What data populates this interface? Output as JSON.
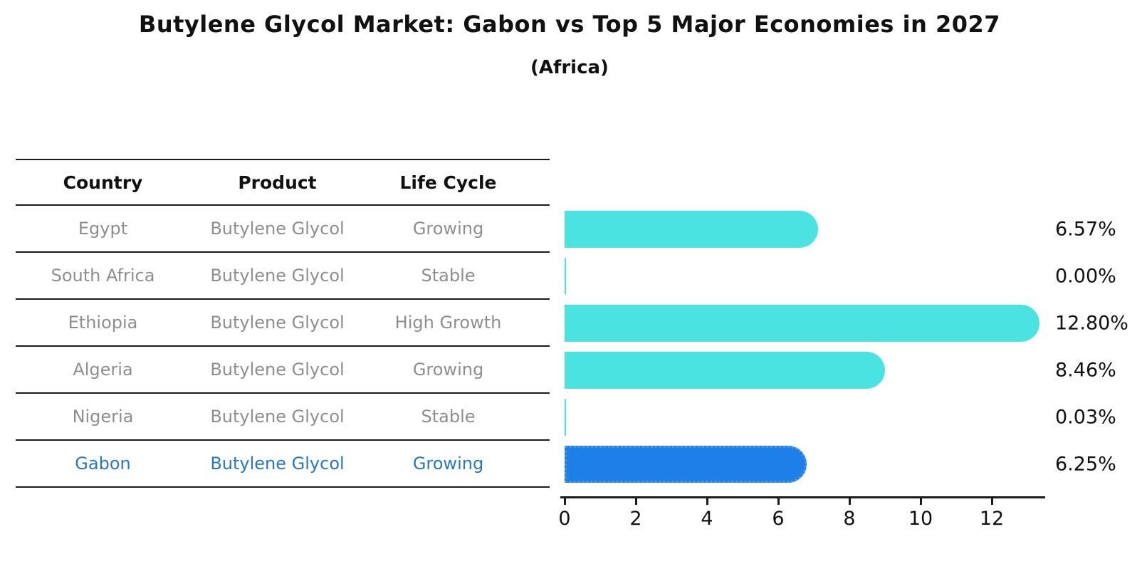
{
  "figure": {
    "title": "Butylene Glycol Market: Gabon vs Top 5 Major Economies in 2027",
    "subtitle": "(Africa)"
  },
  "table": {
    "headers": {
      "country": "Country",
      "product": "Product",
      "life_cycle": "Life Cycle"
    },
    "rows": [
      {
        "country": "Egypt",
        "product": "Butylene Glycol",
        "life_cycle": "Growing"
      },
      {
        "country": "South Africa",
        "product": "Butylene Glycol",
        "life_cycle": "Stable"
      },
      {
        "country": "Ethiopia",
        "product": "Butylene Glycol",
        "life_cycle": "High Growth"
      },
      {
        "country": "Algeria",
        "product": "Butylene Glycol",
        "life_cycle": "Growing"
      },
      {
        "country": "Nigeria",
        "product": "Butylene Glycol",
        "life_cycle": "Stable"
      },
      {
        "country": "Gabon",
        "product": "Butylene Glycol",
        "life_cycle": "Growing"
      }
    ],
    "highlight_row": 5
  },
  "chart_data": {
    "type": "bar",
    "orientation": "horizontal",
    "title": "Butylene Glycol Market: Gabon vs Top 5 Major Economies in 2027",
    "subtitle": "(Africa)",
    "categories": [
      "Egypt",
      "South Africa",
      "Ethiopia",
      "Algeria",
      "Nigeria",
      "Gabon"
    ],
    "values": [
      6.57,
      0.0,
      12.8,
      8.46,
      0.03,
      6.25
    ],
    "value_labels": [
      "6.57%",
      "0.00%",
      "12.80%",
      "8.46%",
      "0.03%",
      "6.25%"
    ],
    "unit": "percent",
    "xticks": [
      0,
      2,
      4,
      6,
      8,
      10,
      12
    ],
    "xlim": [
      0,
      13.5
    ],
    "grid": false,
    "legend": false,
    "bar_color": "#4AE3E2",
    "highlight_index": 5,
    "highlight_bar_color": "#1E7FE8",
    "highlight_border_color": "#4597EE",
    "highlight_text_color": "#2878BE",
    "axis_color": "#1a1a1a"
  }
}
